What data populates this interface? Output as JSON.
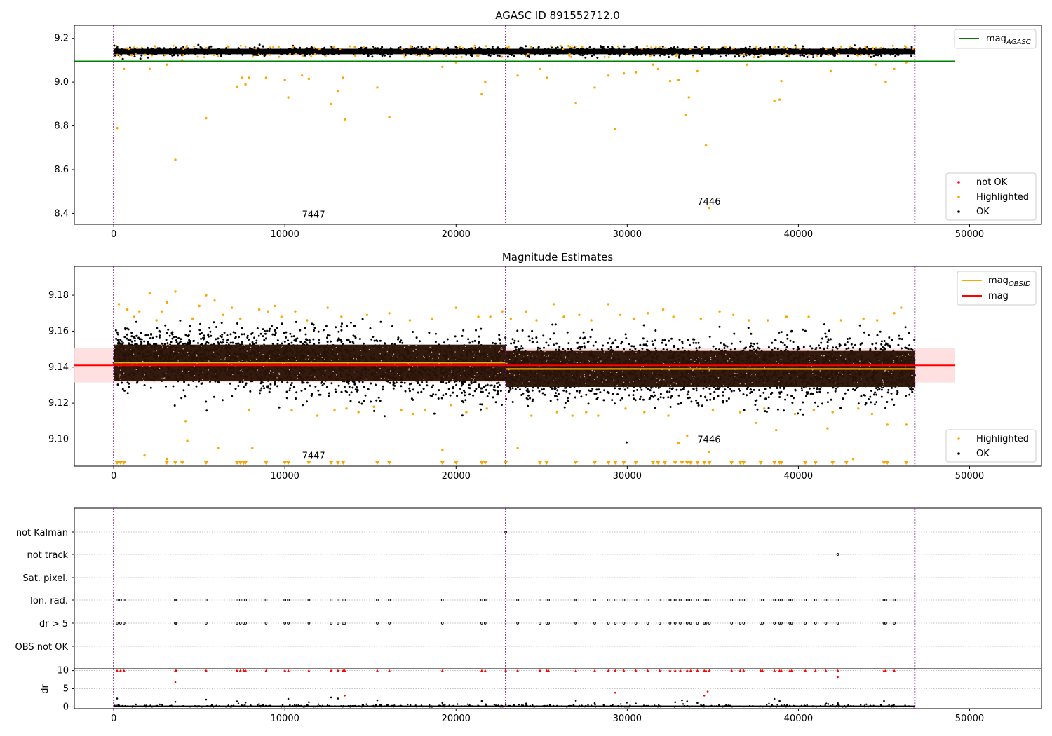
{
  "figure": {
    "title": "AGASC ID 891552712.0",
    "subtitle": "Magnitude Estimates"
  },
  "colors": {
    "ok": "#000000",
    "highlighted": "#ffa500",
    "not_ok": "#ff0000",
    "mag_agasc": "#008000",
    "mag_obsid": "#ffa500",
    "mag": "#ff0000",
    "mag_band": "#ffdddd",
    "obs_band": "#2a1205",
    "obs_divider": "#800080",
    "grid": "#b0b0b0"
  },
  "chart_data": [
    {
      "type": "scatter",
      "title": "AGASC ID 891552712.0",
      "xlim": [
        -2300,
        54200
      ],
      "ylim": [
        8.35,
        9.26
      ],
      "x_ticks": [
        0,
        10000,
        20000,
        30000,
        40000,
        50000
      ],
      "y_ticks": [
        8.4,
        8.6,
        8.8,
        9.0,
        9.2
      ],
      "y_tick_labels": [
        "8.4",
        "8.6",
        "8.8",
        "9.0",
        "9.2"
      ],
      "obs_boundaries": [
        0,
        22900,
        46800
      ],
      "obs_labels": [
        {
          "text": "7447",
          "x": 11000,
          "y": 8.38
        },
        {
          "text": "7446",
          "x": 34100,
          "y": 8.44
        }
      ],
      "mag_agasc": 9.095,
      "legend_line": [
        {
          "name": "mag",
          "sub": "AGASC"
        }
      ],
      "legend_points": [
        "not OK",
        "Highlighted",
        "OK"
      ],
      "ok_band": {
        "center": 9.14,
        "halfwidth": 0.018
      },
      "highlighted_points": [
        [
          200,
          8.79
        ],
        [
          600,
          9.06
        ],
        [
          2100,
          9.06
        ],
        [
          3100,
          9.08
        ],
        [
          3600,
          8.645
        ],
        [
          4000,
          9.1
        ],
        [
          5400,
          8.835
        ],
        [
          7200,
          8.98
        ],
        [
          7500,
          9.02
        ],
        [
          7700,
          8.99
        ],
        [
          7900,
          9.02
        ],
        [
          8900,
          9.02
        ],
        [
          10000,
          9.01
        ],
        [
          10200,
          8.93
        ],
        [
          11000,
          9.03
        ],
        [
          11400,
          9.015
        ],
        [
          12700,
          8.9
        ],
        [
          13100,
          8.96
        ],
        [
          13400,
          9.02
        ],
        [
          13500,
          8.83
        ],
        [
          15400,
          8.975
        ],
        [
          16100,
          8.84
        ],
        [
          19200,
          9.07
        ],
        [
          20000,
          9.09
        ],
        [
          21500,
          8.945
        ],
        [
          21700,
          9.0
        ],
        [
          23600,
          9.03
        ],
        [
          24900,
          9.06
        ],
        [
          25300,
          9.02
        ],
        [
          27000,
          8.905
        ],
        [
          28100,
          8.975
        ],
        [
          28900,
          9.03
        ],
        [
          29300,
          8.785
        ],
        [
          29800,
          9.04
        ],
        [
          30500,
          9.045
        ],
        [
          31500,
          9.08
        ],
        [
          31800,
          9.06
        ],
        [
          32500,
          9.005
        ],
        [
          33000,
          9.01
        ],
        [
          33400,
          8.85
        ],
        [
          33600,
          8.93
        ],
        [
          34100,
          9.05
        ],
        [
          34600,
          8.71
        ],
        [
          34800,
          8.425
        ],
        [
          37000,
          9.08
        ],
        [
          38600,
          8.915
        ],
        [
          38900,
          8.92
        ],
        [
          39000,
          9.005
        ],
        [
          41900,
          9.05
        ],
        [
          44500,
          9.08
        ],
        [
          45100,
          9.0
        ],
        [
          45600,
          9.06
        ],
        [
          46300,
          9.09
        ]
      ],
      "not_ok_points": []
    },
    {
      "type": "scatter",
      "title": "Magnitude Estimates",
      "xlim": [
        -2300,
        54200
      ],
      "ylim": [
        9.085,
        9.196
      ],
      "x_ticks": [
        0,
        10000,
        20000,
        30000,
        40000,
        50000
      ],
      "y_ticks": [
        9.1,
        9.12,
        9.14,
        9.16,
        9.18
      ],
      "y_tick_labels": [
        "9.10",
        "9.12",
        "9.14",
        "9.16",
        "9.18"
      ],
      "obs_boundaries": [
        0,
        22900,
        46800
      ],
      "obs_labels": [
        {
          "text": "7447",
          "x": 11000,
          "y": 9.089
        },
        {
          "text": "7446",
          "x": 34100,
          "y": 9.098
        }
      ],
      "mag": 9.141,
      "mag_band": [
        9.1315,
        9.1505
      ],
      "mag_obsid": [
        {
          "x_start": 0,
          "x_end": 22900,
          "y": 9.1425
        },
        {
          "x_start": 22900,
          "x_end": 46800,
          "y": 9.139
        }
      ],
      "obs_bands": [
        {
          "x_start": 0,
          "x_end": 22900,
          "y_low": 9.1325,
          "y_high": 9.1525
        },
        {
          "x_start": 22900,
          "x_end": 46800,
          "y_low": 9.129,
          "y_high": 9.149
        }
      ],
      "legend_line": [
        {
          "name": "mag",
          "sub": "OBSID",
          "color_key": "mag_obsid"
        },
        {
          "name": "mag",
          "sub": "",
          "color_key": "mag"
        }
      ],
      "legend_points": [
        "Highlighted",
        "OK"
      ],
      "below_axis_markers_x": [
        200,
        400,
        600,
        3100,
        3600,
        4000,
        5400,
        7200,
        7400,
        7600,
        7700,
        8900,
        10000,
        10200,
        11400,
        12700,
        13100,
        13400,
        15400,
        16100,
        19200,
        20000,
        21500,
        21700,
        22900,
        24900,
        25300,
        27000,
        28100,
        28900,
        29300,
        29800,
        30500,
        31500,
        31800,
        32200,
        32800,
        33200,
        33500,
        33700,
        34100,
        34500,
        34800,
        36100,
        36600,
        36800,
        37800,
        38600,
        38900,
        39000,
        40400,
        41000,
        42000,
        42800,
        45000,
        45200,
        46300
      ],
      "highlighted_points": [
        [
          2100,
          9.181
        ],
        [
          3100,
          9.176
        ],
        [
          3600,
          9.182
        ],
        [
          4200,
          9.11
        ],
        [
          4300,
          9.099
        ],
        [
          5400,
          9.18
        ],
        [
          6100,
          9.095
        ],
        [
          7900,
          9.116
        ],
        [
          8100,
          9.095
        ],
        [
          1800,
          9.091
        ],
        [
          3100,
          9.089
        ],
        [
          10400,
          9.116
        ],
        [
          11900,
          9.113
        ],
        [
          12500,
          9.173
        ],
        [
          19200,
          9.094
        ],
        [
          20000,
          9.173
        ],
        [
          23600,
          9.095
        ],
        [
          25700,
          9.175
        ],
        [
          28900,
          9.175
        ],
        [
          33000,
          9.098
        ],
        [
          33500,
          9.102
        ],
        [
          34800,
          9.093
        ],
        [
          37500,
          9.109
        ],
        [
          38700,
          9.105
        ],
        [
          41700,
          9.106
        ],
        [
          43200,
          9.089
        ],
        [
          45200,
          9.108
        ],
        [
          46000,
          9.173
        ],
        [
          46300,
          9.108
        ],
        [
          300,
          9.175
        ],
        [
          800,
          9.172
        ],
        [
          1200,
          9.168
        ],
        [
          1500,
          9.171
        ],
        [
          2500,
          9.166
        ],
        [
          2800,
          9.171
        ],
        [
          4600,
          9.167
        ],
        [
          5000,
          9.174
        ],
        [
          5900,
          9.177
        ],
        [
          6400,
          9.169
        ],
        [
          6900,
          9.173
        ],
        [
          7400,
          9.167
        ],
        [
          8500,
          9.172
        ],
        [
          9000,
          9.171
        ],
        [
          9400,
          9.174
        ],
        [
          9800,
          9.168
        ],
        [
          10600,
          9.171
        ],
        [
          11300,
          9.166
        ],
        [
          13300,
          9.168
        ],
        [
          14800,
          9.169
        ],
        [
          16100,
          9.17
        ],
        [
          17300,
          9.166
        ],
        [
          18600,
          9.167
        ],
        [
          21300,
          9.168
        ],
        [
          22000,
          9.168
        ],
        [
          22700,
          9.171
        ],
        [
          23200,
          9.167
        ],
        [
          24100,
          9.171
        ],
        [
          24700,
          9.166
        ],
        [
          26300,
          9.168
        ],
        [
          27200,
          9.169
        ],
        [
          27900,
          9.166
        ],
        [
          29600,
          9.169
        ],
        [
          30400,
          9.167
        ],
        [
          31200,
          9.17
        ],
        [
          32100,
          9.172
        ],
        [
          32700,
          9.168
        ],
        [
          34300,
          9.167
        ],
        [
          35400,
          9.171
        ],
        [
          36200,
          9.169
        ],
        [
          37100,
          9.166
        ],
        [
          38200,
          9.166
        ],
        [
          39300,
          9.168
        ],
        [
          40600,
          9.168
        ],
        [
          42500,
          9.166
        ],
        [
          43800,
          9.167
        ],
        [
          44600,
          9.166
        ],
        [
          45600,
          9.17
        ],
        [
          12900,
          9.116
        ],
        [
          13600,
          9.117
        ],
        [
          14300,
          9.115
        ],
        [
          15200,
          9.118
        ],
        [
          16800,
          9.116
        ],
        [
          17500,
          9.114
        ],
        [
          18200,
          9.116
        ],
        [
          19700,
          9.119
        ],
        [
          20600,
          9.115
        ],
        [
          21800,
          9.117
        ],
        [
          24400,
          9.113
        ],
        [
          25900,
          9.115
        ],
        [
          26800,
          9.113
        ],
        [
          27600,
          9.115
        ],
        [
          28300,
          9.113
        ],
        [
          29900,
          9.117
        ],
        [
          31000,
          9.115
        ],
        [
          32400,
          9.113
        ],
        [
          35000,
          9.116
        ],
        [
          36600,
          9.115
        ],
        [
          38000,
          9.117
        ],
        [
          39800,
          9.114
        ],
        [
          40900,
          9.116
        ],
        [
          42000,
          9.115
        ],
        [
          43500,
          9.117
        ],
        [
          44300,
          9.114
        ]
      ]
    },
    {
      "type": "scatter",
      "title": "",
      "xlim": [
        -2300,
        54200
      ],
      "categories": [
        "not Kalman",
        "not track",
        "Sat. pixel.",
        "Ion. rad.",
        "dr > 5",
        "OBS not OK"
      ],
      "obs_boundaries": [
        0,
        22900,
        46800
      ],
      "flag_points": {
        "not Kalman": [
          22900
        ],
        "not track": [
          42300
        ],
        "Sat. pixel.": [],
        "Ion. rad.": [
          200,
          400,
          600,
          3600,
          3650,
          5400,
          7200,
          7400,
          7600,
          7700,
          8900,
          10000,
          10200,
          11400,
          12700,
          13100,
          13400,
          13500,
          15400,
          16100,
          19200,
          21500,
          21700,
          23600,
          24900,
          25300,
          25400,
          27000,
          28100,
          28900,
          29300,
          29800,
          30500,
          31200,
          31900,
          32500,
          32800,
          33100,
          33500,
          33700,
          34100,
          34500,
          34600,
          34800,
          36100,
          36600,
          36800,
          37800,
          37900,
          38600,
          38900,
          39000,
          39500,
          39600,
          40400,
          41000,
          41600,
          42300,
          45000,
          45100,
          45600
        ],
        "dr > 5": [
          200,
          400,
          600,
          3600,
          3650,
          5400,
          7200,
          7400,
          7600,
          7700,
          8900,
          10000,
          10200,
          11400,
          12700,
          13100,
          13400,
          13500,
          15400,
          16100,
          19200,
          21500,
          21700,
          23600,
          24900,
          25300,
          25400,
          27000,
          28100,
          28900,
          29300,
          29800,
          30500,
          31200,
          31900,
          32500,
          32800,
          33100,
          33500,
          33700,
          34100,
          34500,
          34600,
          34800,
          36100,
          36600,
          36800,
          37800,
          37900,
          38600,
          38900,
          39000,
          39500,
          39600,
          40400,
          41000,
          41600,
          42300,
          45000,
          45100,
          45600
        ],
        "OBS not OK": []
      }
    },
    {
      "type": "scatter",
      "title": "",
      "ylabel": "dr",
      "xlim": [
        -2300,
        54200
      ],
      "ylim": [
        -0.5,
        10.5
      ],
      "x_ticks": [
        0,
        10000,
        20000,
        30000,
        40000,
        50000
      ],
      "y_ticks": [
        0,
        5,
        10
      ],
      "y_tick_labels": [
        "0",
        "5",
        "10"
      ],
      "obs_boundaries": [
        0,
        22900,
        46800
      ],
      "clipped_at_10_x": [
        200,
        400,
        600,
        3600,
        3650,
        5400,
        7200,
        7400,
        7600,
        7700,
        8900,
        10000,
        10200,
        11400,
        12700,
        13100,
        13400,
        13500,
        15400,
        16100,
        19200,
        21500,
        21700,
        22900,
        23600,
        24900,
        25300,
        25400,
        27000,
        28100,
        28900,
        29300,
        29800,
        30500,
        31200,
        31900,
        32500,
        32800,
        33100,
        33500,
        33700,
        34100,
        34500,
        34600,
        34800,
        36100,
        36600,
        36800,
        37800,
        37900,
        38600,
        38900,
        39000,
        39500,
        39600,
        40400,
        41000,
        41600,
        42300,
        45000,
        45100,
        45600
      ],
      "not_ok_points": [
        [
          3600,
          6.8
        ],
        [
          13500,
          3.1
        ],
        [
          29300,
          3.9
        ],
        [
          34500,
          3.1
        ],
        [
          34700,
          4.2
        ],
        [
          42300,
          8.2
        ]
      ],
      "ok_outliers": [
        [
          200,
          2.3
        ],
        [
          3600,
          1.4
        ],
        [
          5400,
          2.0
        ],
        [
          7200,
          1.5
        ],
        [
          7700,
          1.2
        ],
        [
          10200,
          2.2
        ],
        [
          11400,
          1.3
        ],
        [
          12700,
          2.6
        ],
        [
          13100,
          2.3
        ],
        [
          15400,
          1.8
        ],
        [
          19200,
          1.1
        ],
        [
          21500,
          1.6
        ],
        [
          24100,
          0.9
        ],
        [
          27000,
          1.7
        ],
        [
          28100,
          1.0
        ],
        [
          30500,
          0.9
        ],
        [
          32800,
          1.3
        ],
        [
          33200,
          1.8
        ],
        [
          33500,
          1.5
        ],
        [
          34100,
          1.1
        ],
        [
          38600,
          2.2
        ],
        [
          38900,
          1.6
        ],
        [
          42300,
          1.0
        ],
        [
          45000,
          1.6
        ]
      ]
    }
  ]
}
